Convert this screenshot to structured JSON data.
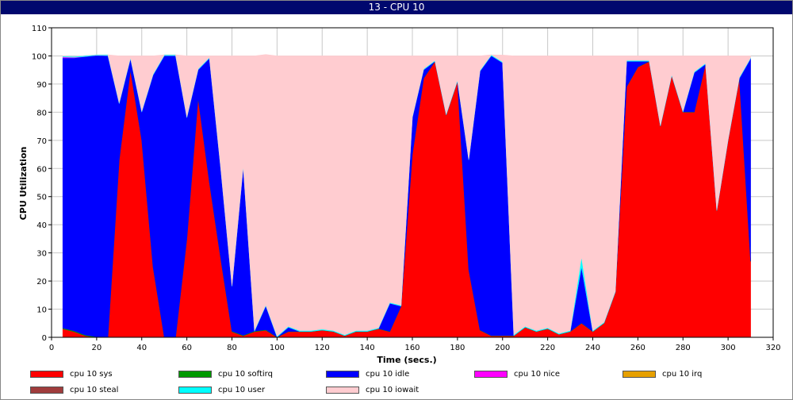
{
  "window": {
    "title": "13 - CPU 10"
  },
  "chart_data": {
    "type": "area",
    "title": "13 - CPU 10",
    "xlabel": "Time (secs.)",
    "ylabel": "CPU Utilization",
    "xlim": [
      0,
      320
    ],
    "ylim": [
      0,
      110
    ],
    "xticks": [
      0,
      20,
      40,
      60,
      80,
      100,
      120,
      140,
      160,
      180,
      200,
      220,
      240,
      260,
      280,
      300,
      320
    ],
    "yticks": [
      0,
      10,
      20,
      30,
      40,
      50,
      60,
      70,
      80,
      90,
      100,
      110
    ],
    "grid": true,
    "legend_position": "bottom",
    "x": [
      5,
      10,
      15,
      20,
      25,
      30,
      35,
      40,
      45,
      50,
      55,
      60,
      65,
      70,
      75,
      80,
      85,
      90,
      95,
      100,
      105,
      110,
      115,
      120,
      125,
      130,
      135,
      140,
      145,
      150,
      155,
      160,
      165,
      170,
      175,
      180,
      185,
      190,
      195,
      200,
      205,
      210,
      215,
      220,
      225,
      230,
      235,
      240,
      245,
      250,
      255,
      260,
      265,
      270,
      275,
      280,
      285,
      290,
      295,
      300,
      305,
      310
    ],
    "series": [
      {
        "name": "cpu 10 sys",
        "color": "#ff0000",
        "values": [
          3,
          2,
          0.5,
          0,
          0,
          63,
          95,
          70,
          25,
          0,
          0,
          35,
          85,
          55,
          28,
          2,
          0.5,
          2,
          2.5,
          0,
          2,
          2,
          2,
          2.5,
          2,
          0.5,
          2,
          2,
          3,
          2,
          11,
          65,
          92,
          98,
          79,
          91,
          24,
          2.5,
          0.5,
          0.5,
          0.5,
          3.5,
          2,
          3,
          1,
          2,
          5,
          2,
          5,
          16,
          89,
          96,
          98,
          75,
          93,
          80,
          80,
          97,
          45,
          70,
          92,
          27
        ]
      },
      {
        "name": "cpu 10 softirq",
        "color": "#009900",
        "values": [
          0.3,
          0.3,
          0.3,
          0.2,
          0.1,
          0.1,
          0.1,
          0.1,
          0.2,
          0.1,
          0.1,
          0.1,
          0.1,
          0.2,
          0.2,
          0.2,
          0.2,
          0.2,
          0.2,
          0.1,
          0.1,
          0.1,
          0.1,
          0.1,
          0.1,
          0.1,
          0.1,
          0.1,
          0.1,
          0.1,
          0.1,
          0.1,
          0.1,
          0.1,
          0.1,
          0.1,
          0.1,
          0.1,
          0.1,
          0.1,
          0.1,
          0.1,
          0.1,
          0.1,
          0.1,
          0.1,
          0.1,
          0.1,
          0.1,
          0.1,
          0.1,
          0.1,
          0.1,
          0.1,
          0.1,
          0.1,
          0.1,
          0.1,
          0.1,
          0.1,
          0.1,
          0.1
        ]
      },
      {
        "name": "cpu 10 idle",
        "color": "#0000ff",
        "values": [
          96,
          97,
          99,
          100,
          100,
          20,
          4,
          10,
          68,
          100,
          100,
          43,
          10,
          44,
          32,
          16,
          60,
          0,
          8.5,
          0,
          1.5,
          0,
          0,
          0,
          0,
          0,
          0,
          0,
          0,
          10,
          0,
          13,
          3,
          0,
          0,
          0,
          39,
          92,
          99.5,
          97,
          0,
          0,
          0,
          0,
          0,
          0,
          20,
          0,
          0,
          0,
          9,
          2,
          0,
          0,
          0,
          0,
          14,
          0,
          0,
          0,
          0,
          72
        ]
      },
      {
        "name": "cpu 10 nice",
        "color": "#ff00ff",
        "values": [
          0.3,
          0.2,
          0,
          0,
          0,
          0,
          0,
          0,
          0,
          0,
          0,
          0,
          0,
          0,
          0,
          0,
          0,
          0,
          0,
          0,
          0,
          0,
          0,
          0,
          0,
          0,
          0,
          0,
          0,
          0,
          0,
          0,
          0,
          0,
          0,
          0,
          0,
          0,
          0,
          0,
          0,
          0,
          0,
          0,
          0,
          0,
          0,
          0,
          0,
          0,
          0,
          0,
          0,
          0,
          0,
          0,
          0,
          0,
          0,
          0,
          0,
          0
        ]
      },
      {
        "name": "cpu 10 irq",
        "color": "#e6a000",
        "values": [
          0,
          0,
          0,
          0,
          0,
          0,
          0,
          0,
          0,
          0,
          0,
          0,
          0,
          0,
          0,
          0,
          0,
          0,
          0,
          0,
          0,
          0,
          0,
          0,
          0,
          0,
          0,
          0,
          0,
          0,
          0,
          0,
          0,
          0,
          0,
          0,
          0,
          0,
          0,
          0,
          0,
          0,
          0,
          0,
          0,
          0,
          0,
          0,
          0,
          0,
          0,
          0,
          0,
          0,
          0,
          0,
          0,
          0,
          0,
          0,
          0,
          0
        ]
      },
      {
        "name": "cpu 10 steal",
        "color": "#a03c3c",
        "values": [
          0,
          0,
          0,
          0,
          0,
          0,
          0,
          0,
          0,
          0,
          0,
          0,
          0,
          0,
          0,
          0,
          0,
          0,
          0,
          0,
          0,
          0,
          0,
          0,
          0,
          0,
          0,
          0,
          0,
          0,
          0,
          0,
          0,
          0,
          0,
          0,
          0,
          0,
          0,
          0,
          0,
          0,
          0,
          0,
          0,
          0,
          0,
          0,
          0,
          0,
          0,
          0,
          0,
          0,
          0,
          0,
          0,
          0,
          0,
          0,
          0,
          0
        ]
      },
      {
        "name": "cpu 10 user",
        "color": "#00ffff",
        "values": [
          0.3,
          0.3,
          0.3,
          0.2,
          0.3,
          0.3,
          0.3,
          0.3,
          0.3,
          0.3,
          0.3,
          0.3,
          0.3,
          0.3,
          0.3,
          0.3,
          0.3,
          0.3,
          0.3,
          0.3,
          0.3,
          0.3,
          0.3,
          0.3,
          0.3,
          0.3,
          0.3,
          0.3,
          0.3,
          0.3,
          0.3,
          0.3,
          0.3,
          0.3,
          0.3,
          0.3,
          0.3,
          0.3,
          0.3,
          0.3,
          0.3,
          0.3,
          0.3,
          0.3,
          0.3,
          0.3,
          3.5,
          0.3,
          0.3,
          0.3,
          0.3,
          0.3,
          0.3,
          0.3,
          0.3,
          0.3,
          0.3,
          0.3,
          0.3,
          0.3,
          0.3,
          0.3
        ]
      },
      {
        "name": "cpu 10 iowait",
        "color": "#ffccd0",
        "values": [
          0,
          0,
          0,
          0,
          0,
          16.6,
          0.6,
          19.6,
          6.5,
          0,
          0,
          21.6,
          4.6,
          0.5,
          39.5,
          81.5,
          39,
          97.5,
          89,
          99.6,
          96.1,
          97.6,
          97.6,
          97.1,
          97.6,
          99.1,
          97.6,
          97.6,
          96.6,
          87.6,
          88.6,
          21.6,
          4.6,
          1.6,
          20.6,
          8.6,
          36.6,
          5.1,
          0,
          2.4,
          99.1,
          96.1,
          97.6,
          96.6,
          98.6,
          97.6,
          71.4,
          97.6,
          94.6,
          83.6,
          1.6,
          1.6,
          1.6,
          24.6,
          6.6,
          19.6,
          5.6,
          2.6,
          54.6,
          29.6,
          7.6,
          0.6
        ]
      }
    ]
  }
}
